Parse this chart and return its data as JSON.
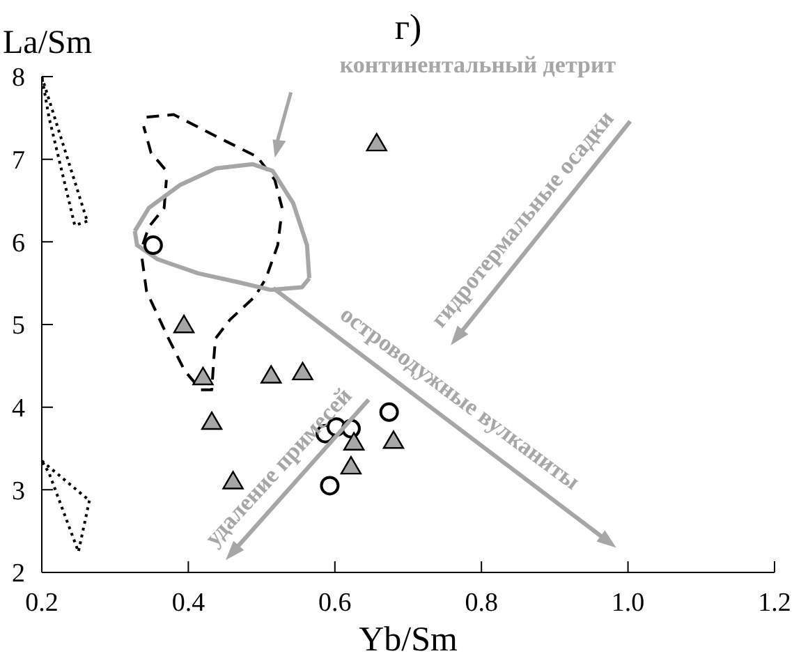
{
  "chart_data": {
    "type": "scatter",
    "title": "г)",
    "xlabel": "Yb/Sm",
    "ylabel": "La/Sm",
    "xlim": [
      0.2,
      1.2
    ],
    "ylim": [
      2,
      8
    ],
    "xticks": [
      0.2,
      0.4,
      0.6,
      0.8,
      {
        "value": 1.0,
        "label": "1.0"
      },
      {
        "value": 1.2,
        "label": "1.2"
      }
    ],
    "yticks": [
      2,
      3,
      4,
      5,
      6,
      7,
      8
    ],
    "grid": false,
    "legend": false,
    "annotations": [
      "континентальный детрит",
      "островодужные вулканиты",
      "гидротермальные осадки",
      "удаление примесей"
    ],
    "series": [
      {
        "type": "scatter",
        "marker": "circle",
        "color": "#000000",
        "x": [
          0.352,
          0.587,
          0.602,
          0.622,
          0.674,
          0.593
        ],
        "values": [
          5.96,
          3.68,
          3.76,
          3.74,
          3.94,
          3.05
        ]
      },
      {
        "type": "scatter",
        "marker": "triangle",
        "color": "#a6a6a6",
        "x": [
          0.657,
          0.394,
          0.42,
          0.513,
          0.556,
          0.432,
          0.626,
          0.68,
          0.622,
          0.461
        ],
        "values": [
          7.19,
          4.99,
          4.36,
          4.38,
          4.42,
          3.82,
          3.57,
          3.59,
          3.28,
          3.1
        ]
      },
      {
        "type": "line",
        "marker": "none",
        "line_style": "dashed",
        "color": "#000000",
        "x": [
          0.343,
          0.38,
          0.444,
          0.494,
          0.518,
          0.528
        ],
        "values": [
          7.51,
          7.54,
          7.25,
          7.03,
          6.75,
          6.41
        ]
      },
      {
        "type": "line",
        "marker": "none",
        "line_style": "dashed",
        "color": "#000000",
        "x": [
          0.526,
          0.522,
          0.506,
          0.491,
          0.457,
          0.437,
          0.435,
          0.432,
          0.417,
          0.395,
          0.373,
          0.343,
          0.336
        ],
        "values": [
          6.25,
          5.96,
          5.56,
          5.34,
          5.06,
          4.83,
          4.61,
          4.21,
          4.21,
          4.44,
          4.83,
          5.4,
          5.85
        ]
      },
      {
        "type": "line",
        "marker": "none",
        "line_style": "dashed",
        "color": "#000000",
        "x": [
          0.338,
          0.346,
          0.367,
          0.37
        ],
        "values": [
          5.97,
          6.18,
          6.41,
          6.75
        ]
      },
      {
        "type": "line",
        "marker": "none",
        "line_style": "dashed",
        "color": "#000000",
        "x": [
          0.368,
          0.349,
          0.339
        ],
        "values": [
          6.88,
          7.08,
          7.4
        ]
      },
      {
        "type": "line",
        "marker": "none",
        "line_style": "solid",
        "color": "#a6a6a6",
        "x": [
          0.327,
          0.346,
          0.389,
          0.438,
          0.488,
          0.515,
          0.543,
          0.562,
          0.565
        ],
        "values": [
          6.13,
          6.41,
          6.69,
          6.89,
          6.94,
          6.86,
          6.47,
          5.96,
          5.56
        ]
      },
      {
        "type": "line",
        "marker": "none",
        "line_style": "solid",
        "color": "#a6a6a6",
        "x": [
          0.565,
          0.555,
          0.512,
          0.469,
          0.413,
          0.358,
          0.33,
          0.327
        ],
        "values": [
          5.56,
          5.45,
          5.42,
          5.51,
          5.62,
          5.79,
          5.96,
          6.13
        ]
      },
      {
        "type": "line",
        "marker": "none",
        "line_style": "dotted",
        "color": "#000000",
        "x": [
          0.2,
          0.262
        ],
        "values": [
          8.0,
          6.25
        ]
      },
      {
        "type": "line",
        "marker": "none",
        "line_style": "dotted",
        "color": "#000000",
        "x": [
          0.262,
          0.245,
          0.21,
          0.2
        ],
        "values": [
          6.25,
          6.2,
          7.5,
          8.0
        ]
      },
      {
        "type": "line",
        "marker": "none",
        "line_style": "dotted",
        "color": "#000000",
        "x": [
          0.2,
          0.265
        ],
        "values": [
          3.35,
          2.87
        ]
      },
      {
        "type": "line",
        "marker": "none",
        "line_style": "dotted",
        "color": "#000000",
        "x": [
          0.265,
          0.25,
          0.21,
          0.2
        ],
        "values": [
          2.87,
          2.25,
          3.2,
          3.35
        ]
      }
    ]
  }
}
